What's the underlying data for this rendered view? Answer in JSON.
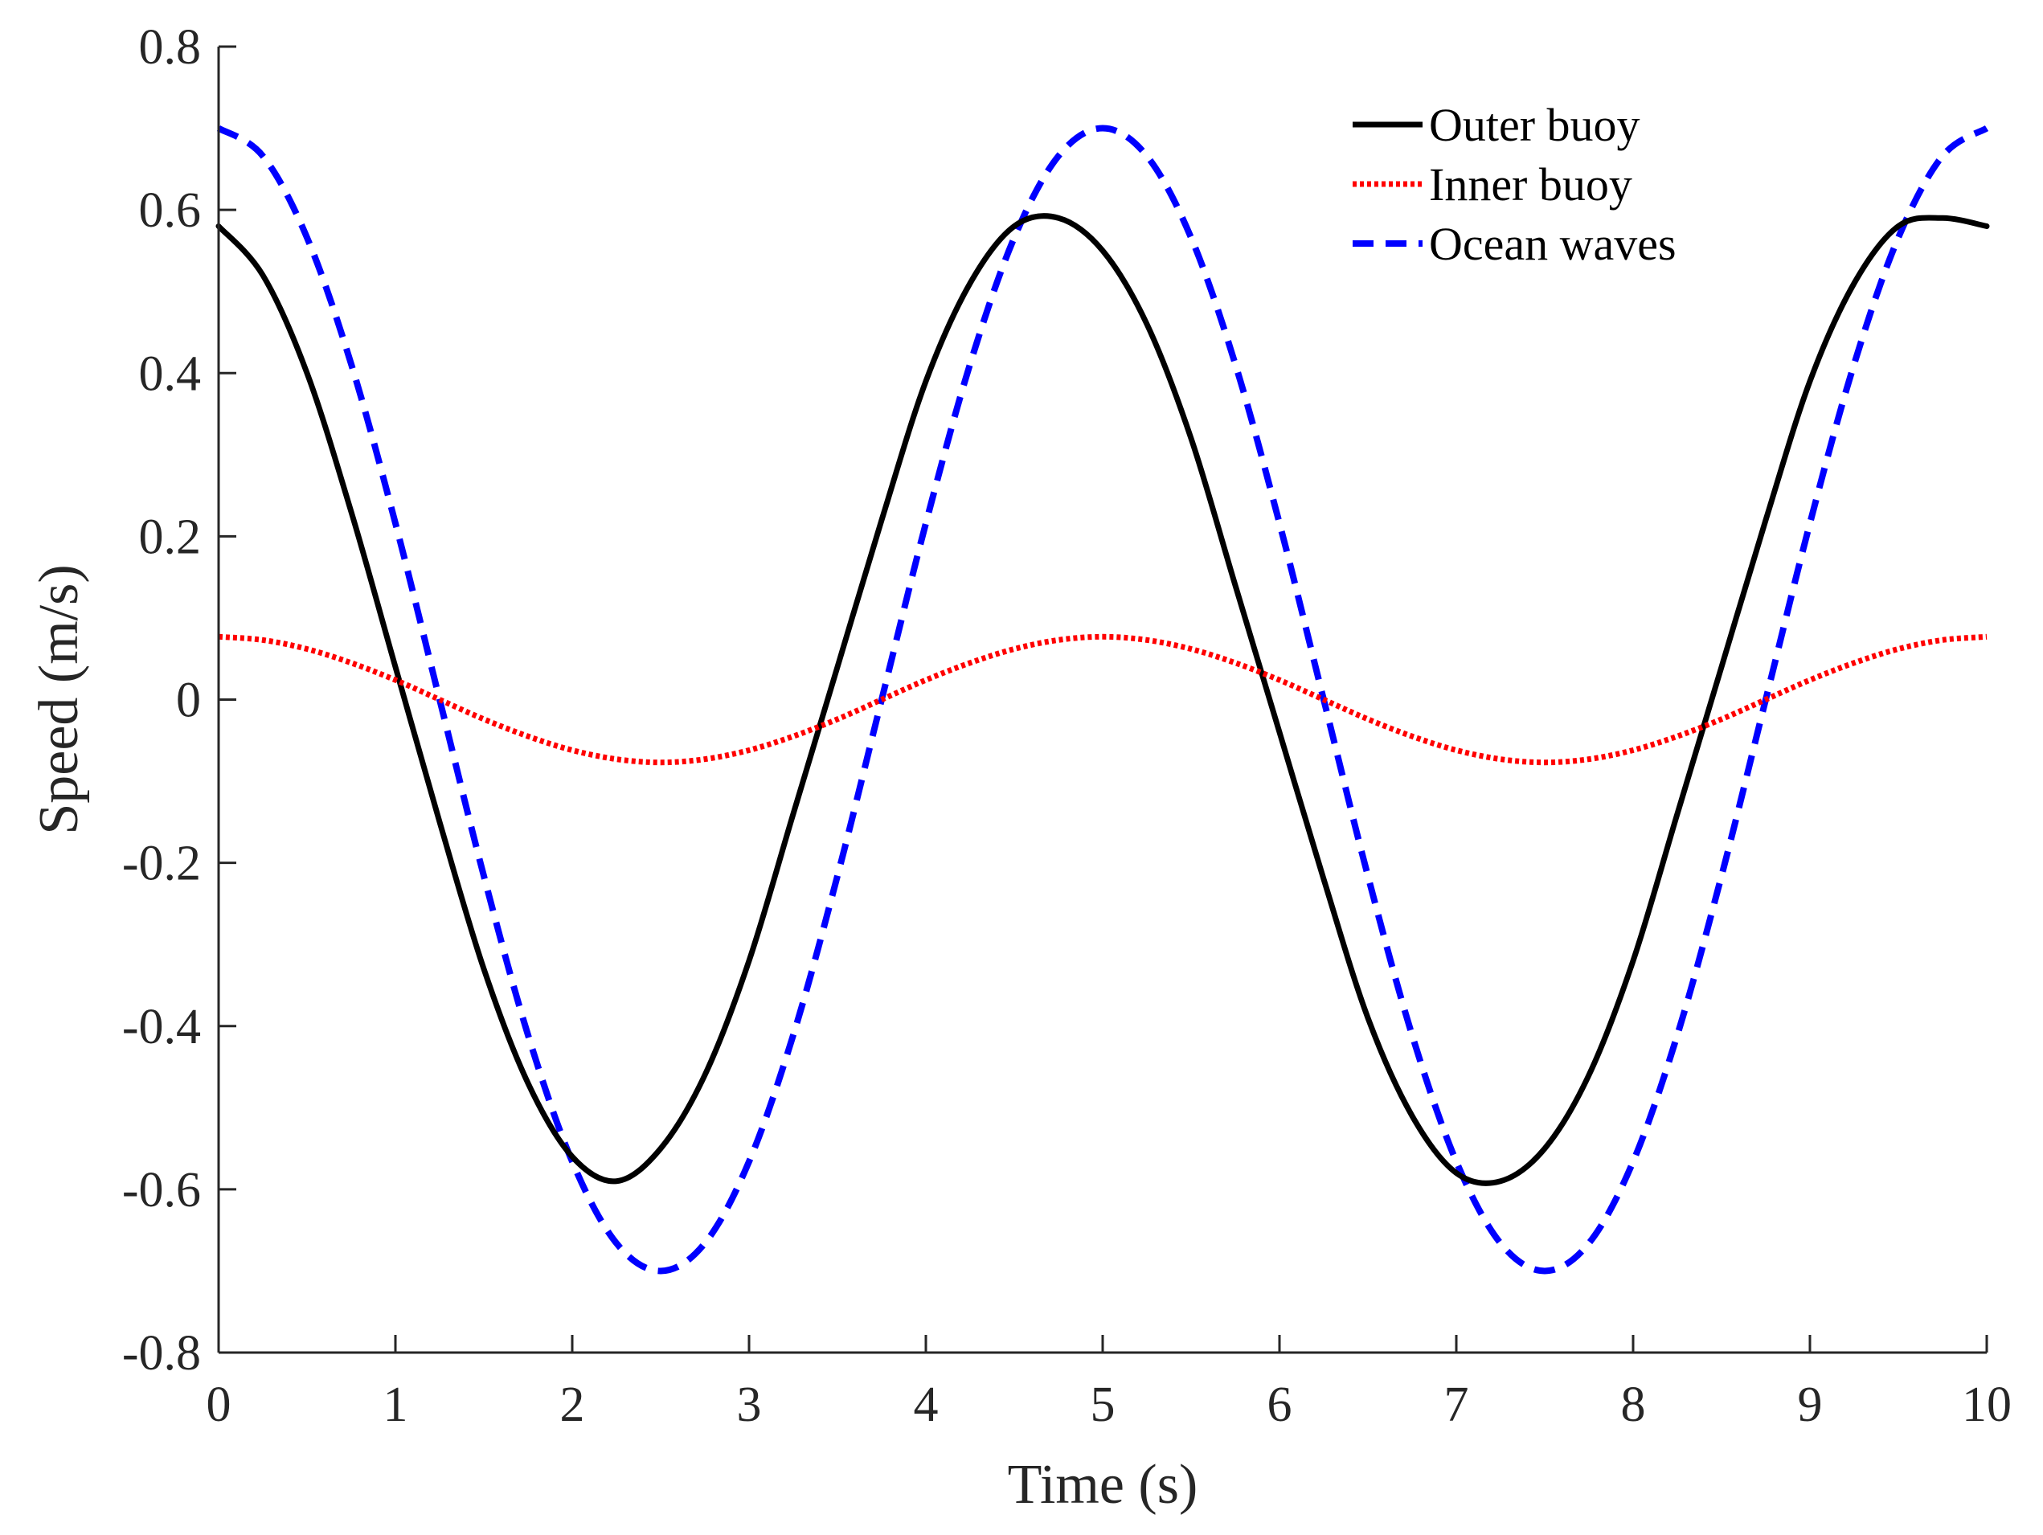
{
  "chart_data": {
    "type": "line",
    "title": "",
    "xlabel": "Time (s)",
    "ylabel": "Speed (m/s)",
    "xlim": [
      0,
      10
    ],
    "ylim": [
      -0.8,
      0.8
    ],
    "xticks": [
      0,
      1,
      2,
      3,
      4,
      5,
      6,
      7,
      8,
      9,
      10
    ],
    "xtick_labels": [
      "0",
      "1",
      "2",
      "3",
      "4",
      "5",
      "6",
      "7",
      "8",
      "9",
      "10"
    ],
    "yticks": [
      0.8,
      0.6,
      0.4,
      0.2,
      0,
      -0.2,
      -0.4,
      -0.6,
      -0.8
    ],
    "ytick_labels": [
      "0.8",
      "0.6",
      "0.4",
      "0.2",
      "0",
      "-0.2",
      "-0.4",
      "-0.6",
      "-0.8"
    ],
    "grid": false,
    "legend_position": "top-right",
    "x": [
      0,
      0.25,
      0.5,
      0.75,
      1,
      1.25,
      1.5,
      1.75,
      2,
      2.25,
      2.5,
      2.75,
      3,
      3.25,
      3.5,
      3.75,
      4,
      4.25,
      4.5,
      4.75,
      5,
      5.25,
      5.5,
      5.75,
      6,
      6.25,
      6.5,
      6.75,
      7,
      7.25,
      7.5,
      7.75,
      8,
      8.25,
      8.5,
      8.75,
      9,
      9.25,
      9.5,
      9.75,
      10
    ],
    "series": [
      {
        "name": "Outer buoy",
        "color": "#000000",
        "style": "solid",
        "values": [
          0.58,
          0.52,
          0.4,
          0.23,
          0.04,
          -0.15,
          -0.33,
          -0.47,
          -0.56,
          -0.59,
          -0.55,
          -0.46,
          -0.32,
          -0.14,
          0.04,
          0.22,
          0.39,
          0.51,
          0.58,
          0.59,
          0.55,
          0.46,
          0.32,
          0.14,
          -0.04,
          -0.22,
          -0.39,
          -0.51,
          -0.58,
          -0.59,
          -0.55,
          -0.46,
          -0.32,
          -0.14,
          0.04,
          0.22,
          0.39,
          0.51,
          0.58,
          0.59,
          0.58
        ]
      },
      {
        "name": "Inner buoy",
        "color": "#ff0000",
        "style": "dotted",
        "values": [
          0.077,
          0.073,
          0.062,
          0.045,
          0.024,
          0.0,
          -0.024,
          -0.045,
          -0.062,
          -0.073,
          -0.077,
          -0.073,
          -0.062,
          -0.045,
          -0.024,
          0.0,
          0.024,
          0.045,
          0.062,
          0.073,
          0.077,
          0.073,
          0.062,
          0.045,
          0.024,
          0.0,
          -0.024,
          -0.045,
          -0.062,
          -0.073,
          -0.077,
          -0.073,
          -0.062,
          -0.045,
          -0.024,
          0.0,
          0.024,
          0.045,
          0.062,
          0.073,
          0.077
        ]
      },
      {
        "name": "Ocean waves",
        "color": "#0000ff",
        "style": "dashed",
        "values": [
          0.7,
          0.666,
          0.566,
          0.411,
          0.216,
          0.0,
          -0.216,
          -0.411,
          -0.566,
          -0.666,
          -0.7,
          -0.666,
          -0.566,
          -0.411,
          -0.216,
          0.0,
          0.216,
          0.411,
          0.566,
          0.666,
          0.7,
          0.666,
          0.566,
          0.411,
          0.216,
          0.0,
          -0.216,
          -0.411,
          -0.566,
          -0.666,
          -0.7,
          -0.666,
          -0.566,
          -0.411,
          -0.216,
          0.0,
          0.216,
          0.411,
          0.566,
          0.666,
          0.7
        ]
      }
    ]
  }
}
